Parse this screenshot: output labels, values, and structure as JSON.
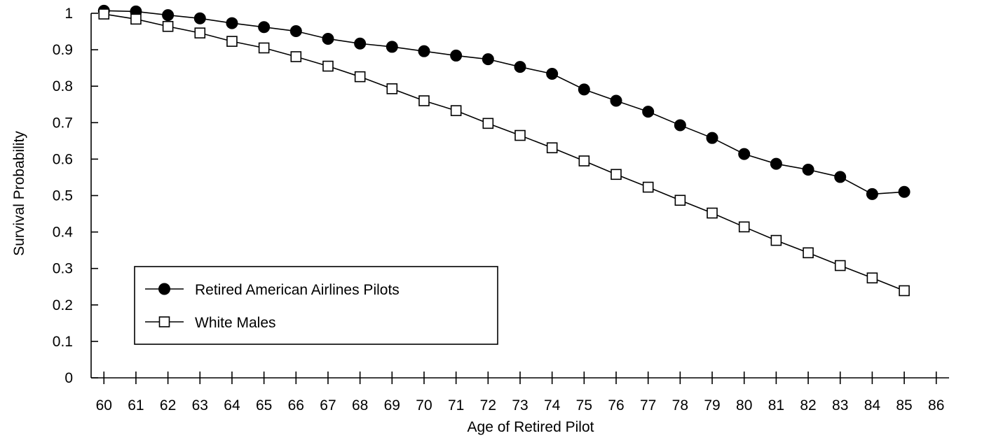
{
  "chart_data": {
    "type": "line",
    "title": "",
    "xlabel": "Age of Retired Pilot",
    "ylabel": "Survival Probability",
    "x_ticks": [
      "60",
      "61",
      "62",
      "63",
      "64",
      "65",
      "66",
      "67",
      "68",
      "69",
      "70",
      "71",
      "72",
      "73",
      "74",
      "75",
      "76",
      "77",
      "78",
      "79",
      "80",
      "81",
      "82",
      "83",
      "84",
      "85",
      "86"
    ],
    "y_ticks": [
      "0",
      "0.1",
      "0.2",
      "0.3",
      "0.4",
      "0.5",
      "0.6",
      "0.7",
      "0.8",
      "0.9",
      "1"
    ],
    "xlim": [
      59.6,
      86.4
    ],
    "ylim": [
      0,
      1
    ],
    "grid": false,
    "legend_position": "bottom-left",
    "series": [
      {
        "name": "Retired American Airlines Pilots",
        "marker": "filled-circle",
        "color": "#000000",
        "x": [
          60,
          61,
          62,
          63,
          64,
          65,
          66,
          67,
          68,
          69,
          70,
          71,
          72,
          73,
          74,
          75,
          76,
          77,
          78,
          79,
          80,
          81,
          82,
          83,
          84,
          85
        ],
        "values": [
          1.007,
          1.005,
          0.995,
          0.986,
          0.973,
          0.962,
          0.951,
          0.93,
          0.917,
          0.908,
          0.896,
          0.884,
          0.874,
          0.853,
          0.834,
          0.791,
          0.76,
          0.73,
          0.693,
          0.658,
          0.614,
          0.587,
          0.571,
          0.551,
          0.504,
          0.51
        ]
      },
      {
        "name": "White Males",
        "marker": "open-square",
        "color": "#000000",
        "x": [
          60,
          61,
          62,
          63,
          64,
          65,
          66,
          67,
          68,
          69,
          70,
          71,
          72,
          73,
          74,
          75,
          76,
          77,
          78,
          79,
          80,
          81,
          82,
          83,
          84,
          85
        ],
        "values": [
          0.998,
          0.984,
          0.964,
          0.946,
          0.923,
          0.905,
          0.881,
          0.855,
          0.826,
          0.793,
          0.76,
          0.733,
          0.698,
          0.665,
          0.631,
          0.595,
          0.558,
          0.523,
          0.487,
          0.452,
          0.414,
          0.377,
          0.343,
          0.308,
          0.274,
          0.239
        ]
      }
    ]
  }
}
